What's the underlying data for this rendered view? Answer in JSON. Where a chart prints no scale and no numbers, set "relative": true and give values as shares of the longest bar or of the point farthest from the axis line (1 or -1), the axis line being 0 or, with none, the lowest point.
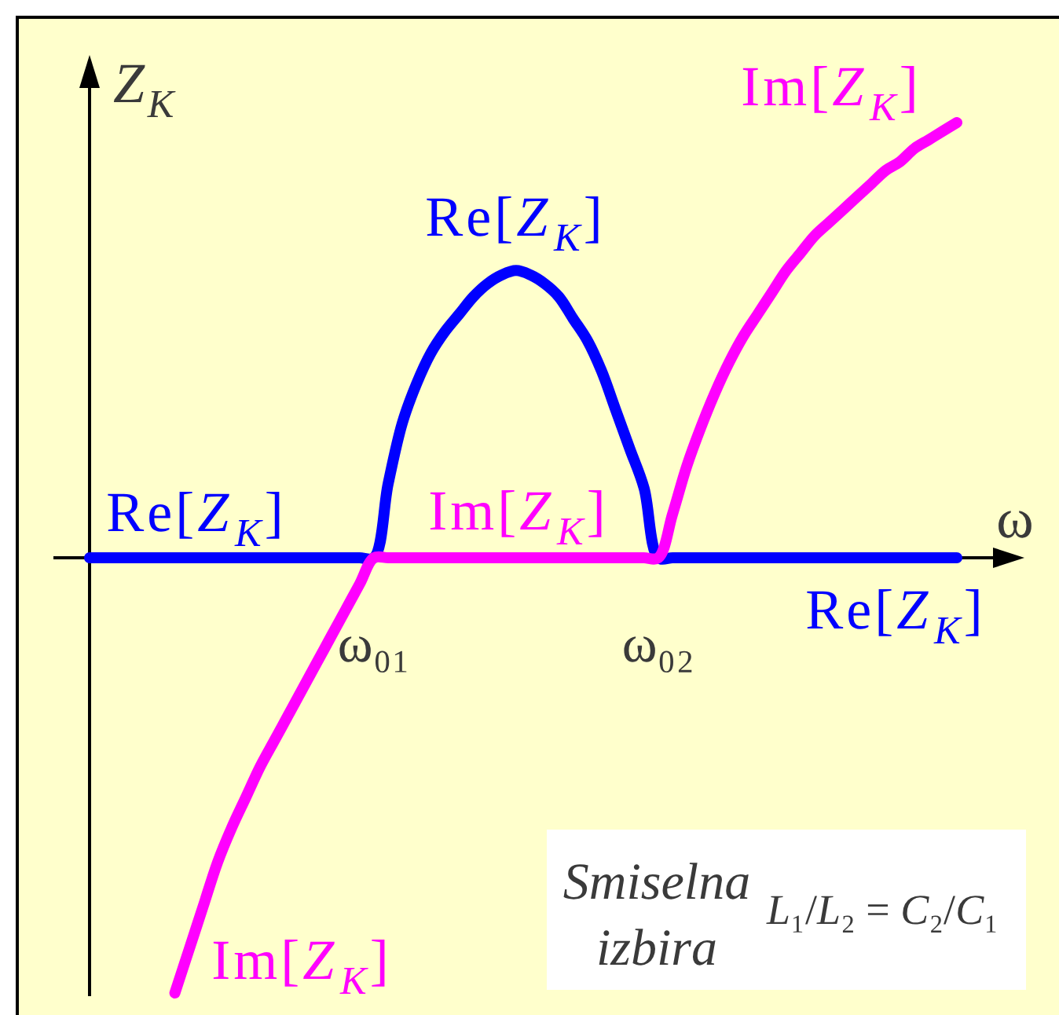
{
  "chart_data": {
    "type": "line",
    "relative": true,
    "xlabel": "ω",
    "ylabel": "Z$_{K}$",
    "categories": [
      null,
      null,
      null,
      null,
      null,
      null,
      null,
      null,
      null,
      null,
      null,
      null,
      null,
      null,
      null,
      null,
      null,
      null,
      null,
      null,
      "ω₀₁",
      null,
      null,
      null,
      null,
      null,
      null,
      null,
      null,
      null,
      null,
      null,
      null,
      null,
      null,
      null,
      null,
      null,
      null,
      null,
      "ω₀₂",
      null,
      null,
      null,
      null,
      null,
      null,
      null,
      null,
      null,
      null,
      null,
      null,
      null,
      null,
      null,
      null,
      null,
      null,
      null,
      null,
      null
    ],
    "series": [
      {
        "name": "Re[Z$_{K}$]",
        "color": "#0000ff",
        "values": [
          0,
          0,
          0,
          0,
          0,
          0,
          0,
          0,
          0,
          0,
          0,
          0,
          0,
          0,
          0,
          0,
          0,
          0,
          0,
          0,
          0,
          0.17,
          0.31,
          0.4,
          0.47,
          0.52,
          0.56,
          0.6,
          0.63,
          0.65,
          0.66,
          0.65,
          0.63,
          0.6,
          0.55,
          0.5,
          0.43,
          0.34,
          0.25,
          0.16,
          0,
          0,
          0,
          0,
          0,
          0,
          0,
          0,
          0,
          0,
          0,
          0,
          0,
          0,
          0,
          0,
          0,
          0,
          0,
          0,
          0,
          0
        ]
      },
      {
        "name": "Im[Z$_{K}$]",
        "color": "#ff00ff",
        "values": [
          null,
          null,
          null,
          null,
          null,
          null,
          -1,
          -0.9,
          -0.8,
          -0.7,
          -0.62,
          -0.55,
          -0.48,
          -0.42,
          -0.36,
          -0.3,
          -0.24,
          -0.18,
          -0.12,
          -0.06,
          0,
          0,
          0,
          0,
          0,
          0,
          0,
          0,
          0,
          0,
          0,
          0,
          0,
          0,
          0,
          0,
          0,
          0,
          0,
          0,
          0,
          0.1,
          0.21,
          0.3,
          0.38,
          0.45,
          0.51,
          0.56,
          0.61,
          0.66,
          0.7,
          0.74,
          0.77,
          0.8,
          0.83,
          0.86,
          0.89,
          0.91,
          0.94,
          0.96,
          0.98,
          1
        ]
      }
    ],
    "annotations": [
      "Smiselna izbira",
      "L₁/L₂ = C₂/C₁"
    ]
  }
}
